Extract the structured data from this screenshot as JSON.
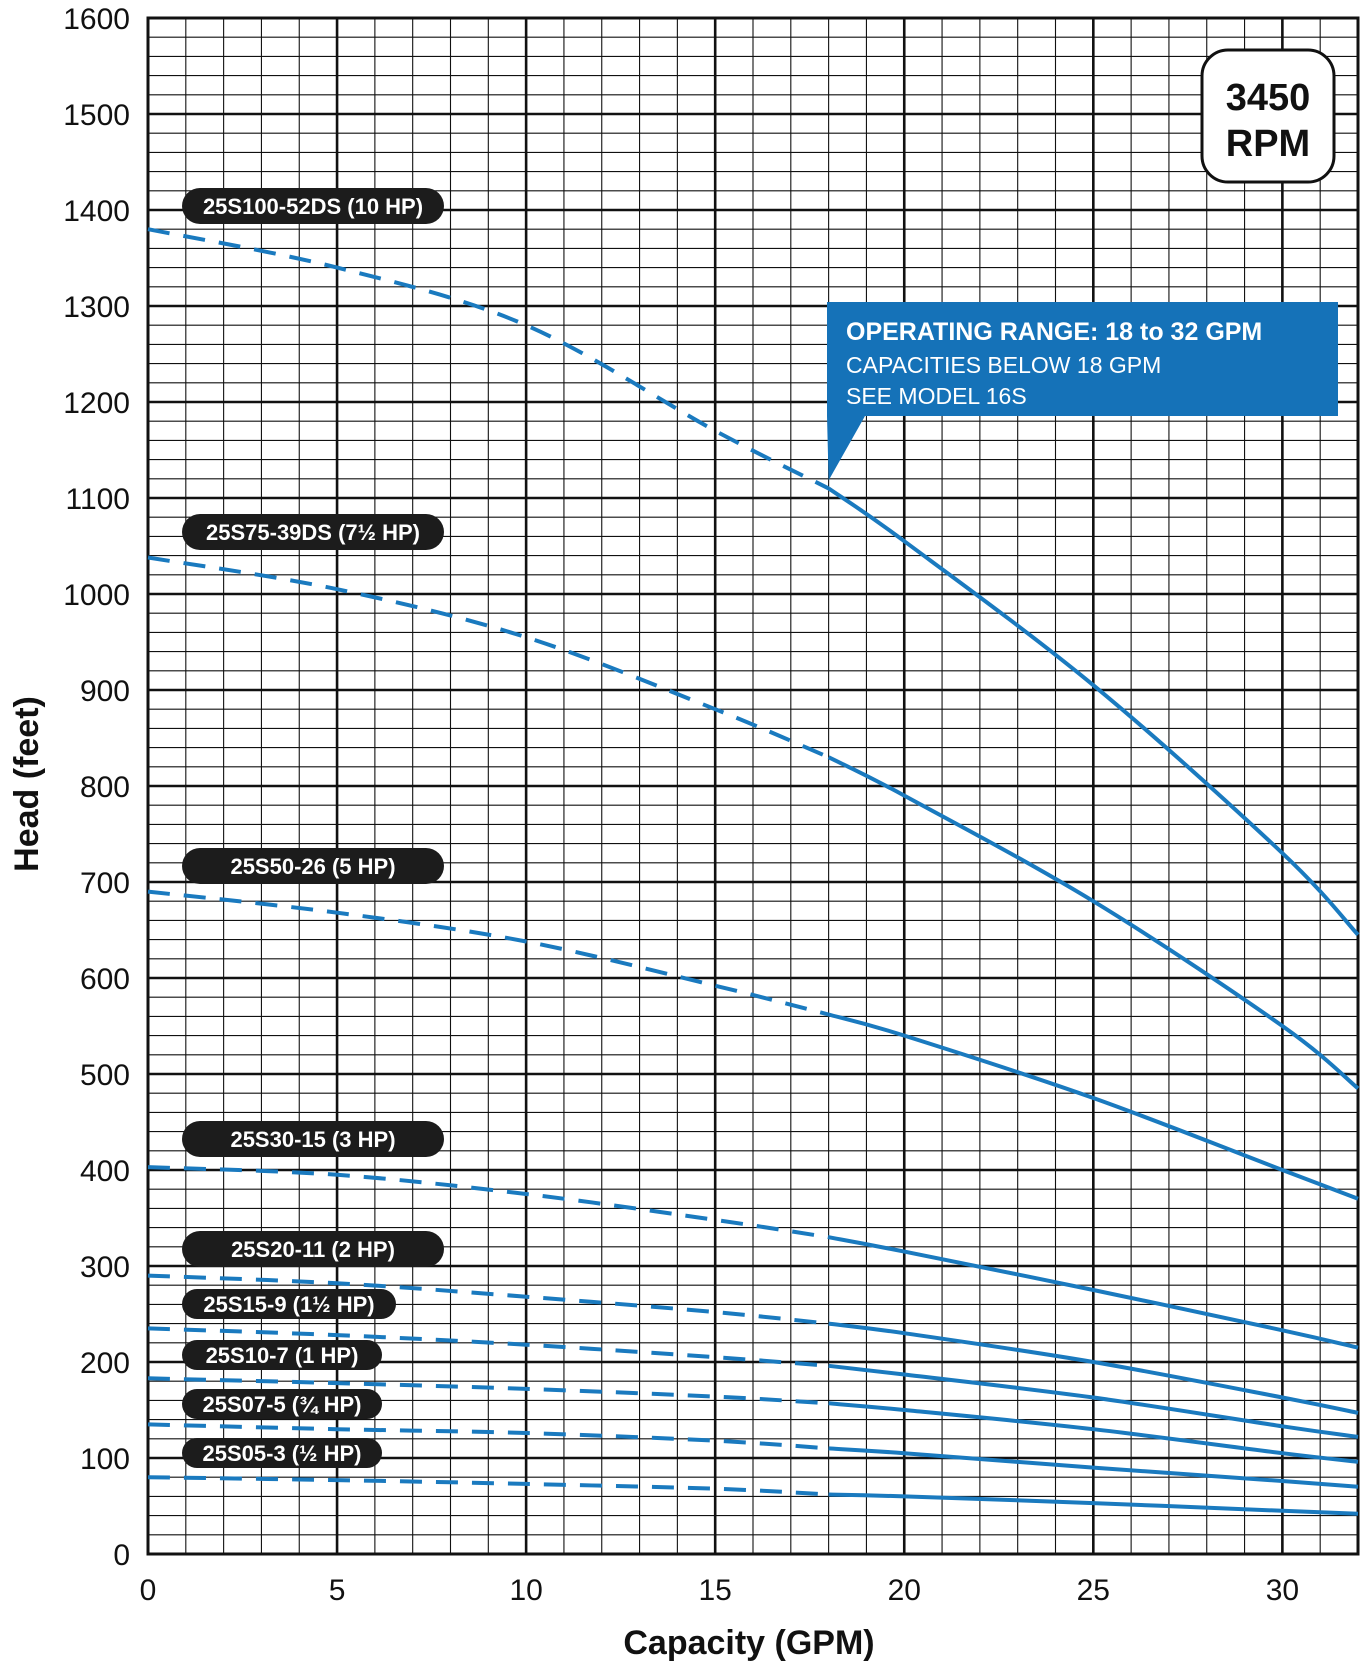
{
  "chart_data": {
    "type": "line",
    "xlabel": "Capacity (GPM)",
    "ylabel": "Head (feet)",
    "xlim": [
      0,
      32
    ],
    "ylim": [
      0,
      1600
    ],
    "x_ticks": [
      0,
      5,
      10,
      15,
      20,
      25,
      30
    ],
    "y_ticks": [
      0,
      100,
      200,
      300,
      400,
      500,
      600,
      700,
      800,
      900,
      1000,
      1100,
      1200,
      1300,
      1400,
      1500,
      1600
    ],
    "grid": true,
    "x_minor_step": 1,
    "y_minor_step": 20,
    "dashed_below_x": 18,
    "rpm_badge": [
      "3450",
      "RPM"
    ],
    "operating_range": {
      "title": "OPERATING RANGE: 18 to 32 GPM",
      "lines": [
        "CAPACITIES BELOW 18 GPM",
        "SEE MODEL 16S"
      ]
    },
    "colors": {
      "curve": "#1a7abf",
      "callout": "#1572b8",
      "pill": "#1c1c1c",
      "grid": "#111111"
    },
    "series": [
      {
        "name": "25S100-52DS (10 HP)",
        "x": [
          0,
          5,
          10,
          15,
          18,
          20,
          25,
          30,
          32
        ],
        "y": [
          1380,
          1340,
          1280,
          1170,
          1110,
          1055,
          905,
          730,
          645
        ]
      },
      {
        "name": "25S75-39DS (7½ HP)",
        "x": [
          0,
          5,
          10,
          15,
          18,
          20,
          25,
          30,
          32
        ],
        "y": [
          1038,
          1005,
          955,
          880,
          830,
          790,
          680,
          550,
          485
        ]
      },
      {
        "name": "25S50-26 (5 HP)",
        "x": [
          0,
          5,
          10,
          15,
          18,
          20,
          25,
          30,
          32
        ],
        "y": [
          690,
          668,
          638,
          592,
          562,
          540,
          475,
          400,
          370
        ]
      },
      {
        "name": "25S30-15 (3 HP)",
        "x": [
          0,
          5,
          10,
          15,
          18,
          20,
          25,
          30,
          32
        ],
        "y": [
          403,
          395,
          375,
          348,
          330,
          315,
          275,
          233,
          215
        ]
      },
      {
        "name": "25S20-11 (2 HP)",
        "x": [
          0,
          5,
          10,
          15,
          18,
          20,
          25,
          30,
          32
        ],
        "y": [
          290,
          282,
          268,
          252,
          240,
          230,
          200,
          163,
          147
        ]
      },
      {
        "name": "25S15-9 (1½ HP)",
        "x": [
          0,
          5,
          10,
          15,
          18,
          20,
          25,
          30,
          32
        ],
        "y": [
          235,
          228,
          218,
          205,
          196,
          187,
          163,
          133,
          122
        ]
      },
      {
        "name": "25S10-7 (1 HP)",
        "x": [
          0,
          5,
          10,
          15,
          18,
          20,
          25,
          30,
          32
        ],
        "y": [
          183,
          178,
          172,
          164,
          157,
          150,
          130,
          105,
          96
        ]
      },
      {
        "name": "25S07-5 (¾ HP)",
        "x": [
          0,
          5,
          10,
          15,
          18,
          20,
          25,
          30,
          32
        ],
        "y": [
          135,
          130,
          126,
          118,
          110,
          105,
          90,
          76,
          70
        ]
      },
      {
        "name": "25S05-3 (½ HP)",
        "x": [
          0,
          5,
          10,
          15,
          18,
          20,
          25,
          30,
          32
        ],
        "y": [
          80,
          77,
          73,
          68,
          62,
          60,
          53,
          45,
          42
        ]
      }
    ]
  }
}
